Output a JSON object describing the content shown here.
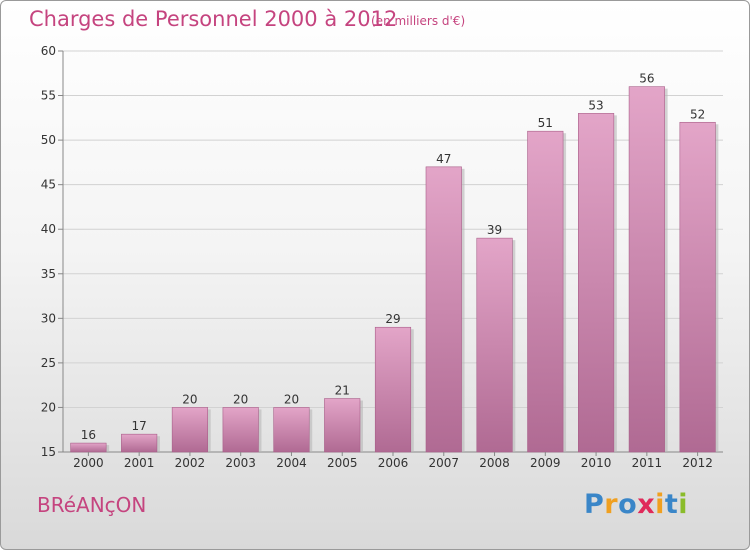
{
  "header": {
    "title": "Charges de Personnel 2000 à 2012",
    "subtitle": "(en milliers d'€)"
  },
  "footer": {
    "commune": "BRéANçON",
    "brand": [
      "P",
      "r",
      "o",
      "x",
      "i",
      "t",
      "i"
    ]
  },
  "colors": {
    "accent": "#c5447f",
    "bar_top": "#e3a5c8",
    "bar_bottom": "#b06a93",
    "brand_letters": [
      "#3a86c8",
      "#f0a020",
      "#3a86c8",
      "#e02a5a",
      "#f0a020",
      "#3a86c8",
      "#8abc2a"
    ]
  },
  "chart_data": {
    "type": "bar",
    "categories": [
      "2000",
      "2001",
      "2002",
      "2003",
      "2004",
      "2005",
      "2006",
      "2007",
      "2008",
      "2009",
      "2010",
      "2011",
      "2012"
    ],
    "values": [
      16,
      17,
      20,
      20,
      20,
      21,
      29,
      47,
      39,
      51,
      53,
      56,
      52
    ],
    "data_labels": [
      "16",
      "17",
      "20",
      "20",
      "20",
      "21",
      "29",
      "47",
      "39",
      "51",
      "53",
      "56",
      "52"
    ],
    "ylim": [
      15,
      60
    ],
    "yticks": [
      15,
      20,
      25,
      30,
      35,
      40,
      45,
      50,
      55,
      60
    ],
    "ytick_labels": [
      "15",
      "20",
      "25",
      "30",
      "35",
      "40",
      "45",
      "50",
      "55",
      "60"
    ],
    "grid": true
  }
}
